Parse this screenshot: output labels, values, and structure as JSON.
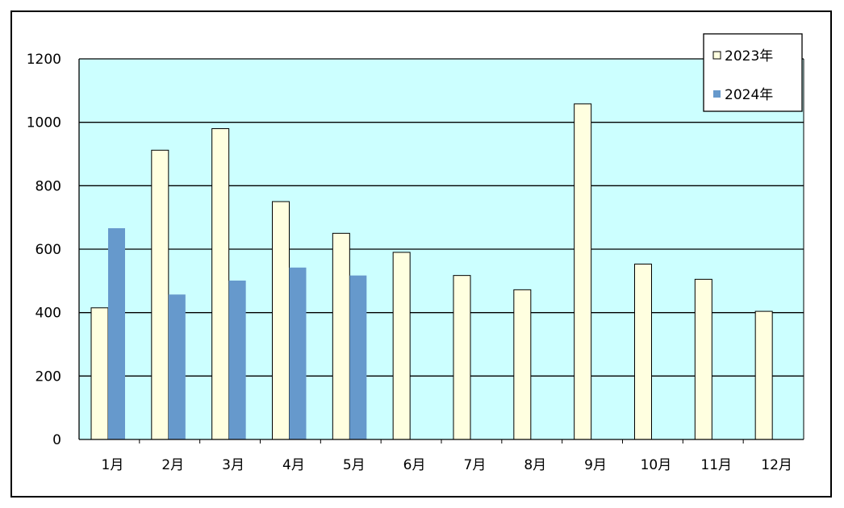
{
  "chart_data": {
    "type": "bar",
    "categories": [
      "1月",
      "2月",
      "3月",
      "4月",
      "5月",
      "6月",
      "7月",
      "8月",
      "9月",
      "10月",
      "11月",
      "12月"
    ],
    "series": [
      {
        "name": "2023年",
        "color": "#ffffe0",
        "values": [
          415,
          912,
          980,
          750,
          650,
          590,
          517,
          472,
          1058,
          553,
          505,
          404
        ]
      },
      {
        "name": "2024年",
        "color": "#6699cc",
        "values": [
          666,
          457,
          501,
          542,
          517,
          null,
          null,
          null,
          null,
          null,
          null,
          null
        ]
      }
    ],
    "y_ticks": [
      "0",
      "200",
      "400",
      "600",
      "800",
      "1000",
      "1200"
    ],
    "ylim": [
      0,
      1200
    ],
    "grid": true,
    "plot_background": "#ccffff",
    "legend_position": "top-right"
  }
}
